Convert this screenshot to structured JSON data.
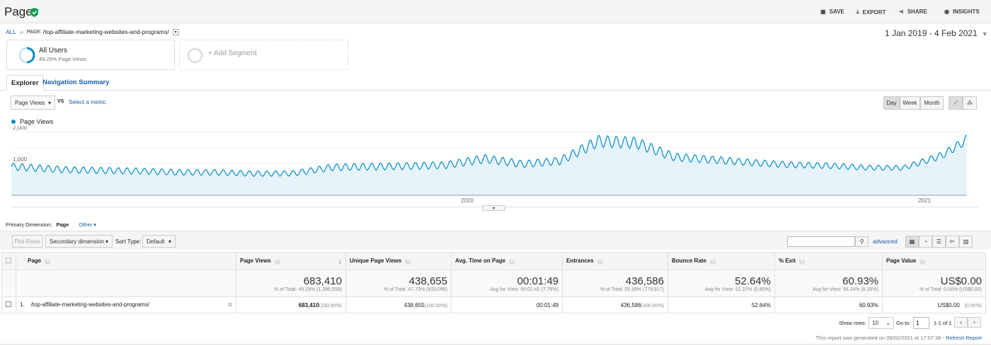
{
  "header": {
    "title": "Pages",
    "actions": [
      {
        "label": "SAVE",
        "icon": "save-icon"
      },
      {
        "label": "EXPORT",
        "icon": "export-icon"
      },
      {
        "label": "SHARE",
        "icon": "share-icon"
      },
      {
        "label": "INSIGHTS",
        "icon": "insights-icon"
      }
    ]
  },
  "breadcrumb": {
    "all": "ALL",
    "sep": "»",
    "page_label": "PAGE:",
    "page": "/top-affiliate-marketing-websites-and-programs/"
  },
  "date_range": "1 Jan 2019 - 4 Feb 2021",
  "segments": {
    "active": {
      "name": "All Users",
      "detail": "49.29% Page Views"
    },
    "add": "+ Add Segment"
  },
  "tabs": [
    {
      "label": "Explorer",
      "active": true
    },
    {
      "label": "Navigation Summary",
      "active": false
    }
  ],
  "metric_select": "Page Views",
  "vs": "VS",
  "select_metric": "Select a metric",
  "granularity": [
    {
      "label": "Day",
      "active": true
    },
    {
      "label": "Week"
    },
    {
      "label": "Month"
    }
  ],
  "chart_data": {
    "type": "area",
    "series": [
      {
        "name": "Page Views",
        "color": "#058dc7"
      }
    ],
    "granularity": "day",
    "note_values": "monthly approximate levels",
    "x": [
      "2019-01",
      "2019-02",
      "2019-03",
      "2019-04",
      "2019-05",
      "2019-06",
      "2019-07",
      "2019-08",
      "2019-09",
      "2019-10",
      "2019-11",
      "2019-12",
      "2020-01",
      "2020-02",
      "2020-03",
      "2020-04",
      "2020-05",
      "2020-06",
      "2020-07",
      "2020-08",
      "2020-09",
      "2020-10",
      "2020-11",
      "2020-12",
      "2021-01",
      "2021-02"
    ],
    "values": [
      900,
      800,
      780,
      760,
      720,
      720,
      680,
      690,
      880,
      900,
      920,
      950,
      1150,
      980,
      1080,
      1700,
      1650,
      1200,
      1120,
      1030,
      960,
      930,
      870,
      860,
      1250,
      1750
    ],
    "yticks": [
      "1,000",
      "2,000"
    ],
    "ytick_values": [
      1000,
      2000
    ],
    "xticks": [
      "2020",
      "2021"
    ],
    "ylim": [
      0,
      2000
    ],
    "grid": true,
    "legend": "top-left"
  },
  "primary_dimension": {
    "label": "Primary Dimension:",
    "value": "Page",
    "other": "Other"
  },
  "toolbar": {
    "plot_rows": "Plot Rows",
    "secondary": "Secondary dimension",
    "sort_label": "Sort Type:",
    "sort": "Default",
    "advanced": "advanced",
    "search_placeholder": ""
  },
  "table": {
    "headers": [
      "Page",
      "Page Views",
      "Unique Page Views",
      "Avg. Time on Page",
      "Entrances",
      "Bounce Rate",
      "% Exit",
      "Page Value"
    ],
    "totals": [
      {
        "v": "683,410",
        "s": "% of Total: 49.29% (1,386,559)"
      },
      {
        "v": "438,655",
        "s": "% of Total: 47.73% (919,096)"
      },
      {
        "v": "00:01:49",
        "s": "Avg for View: 00:01:42 (7.76%)"
      },
      {
        "v": "436,586",
        "s": "% of Total: 55.99% (779,817)"
      },
      {
        "v": "52.64%",
        "s": "Avg for View: 52.22% (0.80%)"
      },
      {
        "v": "60.93%",
        "s": "Avg for View: 56.24% (8.35%)"
      },
      {
        "v": "US$0.00",
        "s": "% of Total: 0.00% (US$0.00)"
      }
    ],
    "rows": [
      {
        "index": "1.",
        "page": "/top-affiliate-marketing-websites-and-programs/",
        "pv": "683,410",
        "pv_pct": "(100.00%)",
        "upv": "438,655",
        "upv_pct": "(100.00%)",
        "time": "00:01:49",
        "ent": "436,586",
        "ent_pct": "(100.00%)",
        "bounce": "52.64%",
        "exit": "60.93%",
        "value": "US$0.00",
        "value_pct": "(0.00%)"
      }
    ]
  },
  "pagination": {
    "show_rows": "Show rows:",
    "rows": "10",
    "goto": "Go to:",
    "page": "1",
    "range": "1-1 of 1"
  },
  "footer": {
    "text": "This report was generated on 05/02/2021 at 17:07:38 - ",
    "refresh": "Refresh Report"
  }
}
